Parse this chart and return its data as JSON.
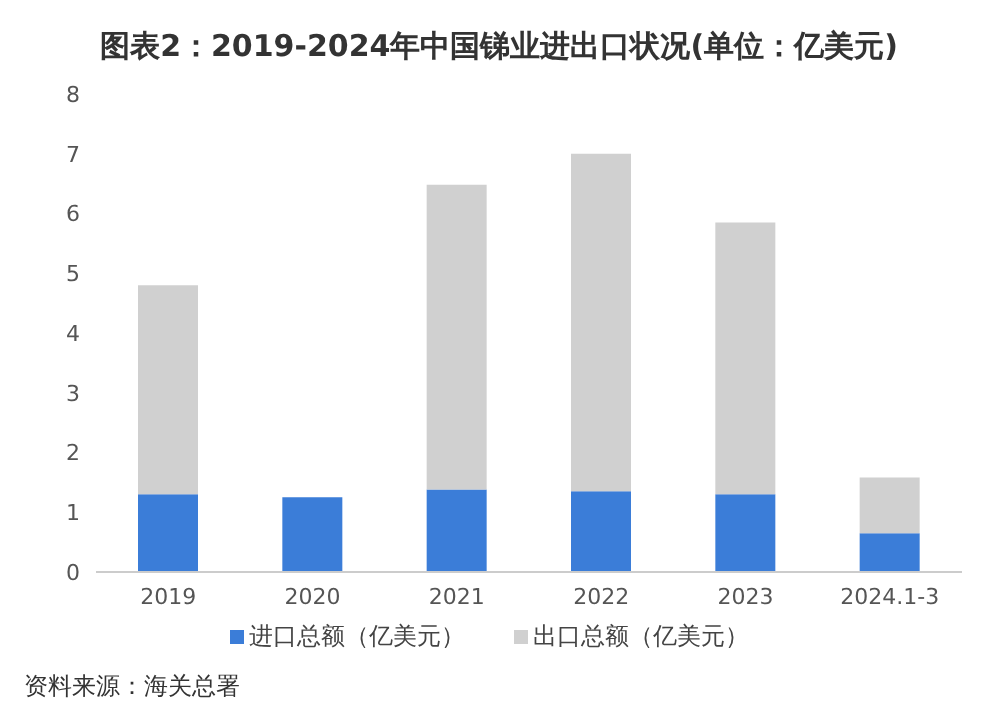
{
  "chart_data": {
    "type": "bar",
    "title": "图表2：2019-2024年中国锑业进出口状况(单位：亿美元)",
    "categories": [
      "2019",
      "2020",
      "2021",
      "2022",
      "2023",
      "2024.1-3"
    ],
    "stacked": true,
    "series": [
      {
        "name": "进口总额（亿美元）",
        "color": "#3b7dd8",
        "values": [
          1.3,
          1.25,
          1.38,
          1.35,
          1.3,
          0.65
        ]
      },
      {
        "name": "出口总额（亿美元）",
        "color": "#d0d0d0",
        "values": [
          3.5,
          null,
          5.1,
          5.65,
          4.55,
          0.93
        ]
      }
    ],
    "ylim": [
      0,
      8
    ],
    "yticks": [
      0,
      1,
      2,
      3,
      4,
      5,
      6,
      7,
      8
    ],
    "grid": false,
    "legend": "bottom",
    "annotations": [
      "资料来源：海关总署"
    ]
  }
}
